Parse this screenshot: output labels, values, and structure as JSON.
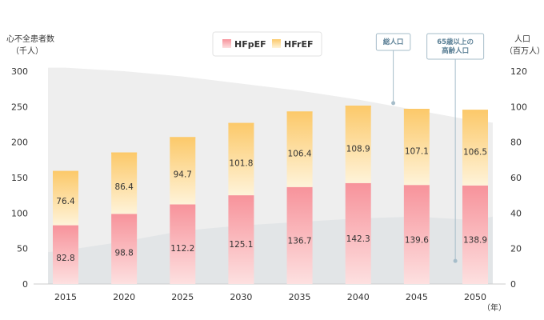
{
  "chart_data": {
    "type": "bar",
    "stacked": true,
    "categories": [
      "2015",
      "2020",
      "2025",
      "2030",
      "2035",
      "2040",
      "2045",
      "2050"
    ],
    "series": [
      {
        "name": "HFpEF",
        "values": [
          82.8,
          98.8,
          112.2,
          125.1,
          136.7,
          142.3,
          139.6,
          138.9
        ],
        "color_top": "#f7939b",
        "color_bottom": "#fde0e0"
      },
      {
        "name": "HFrEF",
        "values": [
          76.4,
          86.4,
          94.7,
          101.8,
          106.4,
          108.9,
          107.1,
          106.5
        ],
        "color_top": "#fcc96a",
        "color_bottom": "#fef3d9"
      }
    ],
    "y_left": {
      "label_line1": "心不全患者数",
      "label_line2": "（千人）",
      "ticks": [
        0,
        50,
        100,
        150,
        200,
        250,
        300
      ],
      "range": [
        0,
        300
      ]
    },
    "y_right": {
      "label_line1": "人口",
      "label_line2": "（百万人）",
      "ticks": [
        0,
        20,
        40,
        60,
        80,
        100,
        120
      ],
      "range": [
        0,
        120
      ]
    },
    "x_unit": "（年）",
    "background_areas": [
      {
        "name": "総人口",
        "color": "#eeeeee",
        "x": [
          2013.5,
          2015,
          2020,
          2025,
          2030,
          2035,
          2040,
          2045,
          2050,
          2051.5
        ],
        "y": [
          122,
          122,
          120,
          117,
          113,
          109,
          104,
          98,
          92,
          91
        ]
      },
      {
        "name": "65歳以上の高齢人口",
        "color": "#e2e5e7",
        "x": [
          2013.5,
          2015,
          2020,
          2025,
          2030,
          2035,
          2040,
          2045,
          2050,
          2051.5
        ],
        "y": [
          18,
          19,
          24,
          30,
          33,
          35,
          37,
          38,
          36,
          38
        ]
      }
    ],
    "callouts": [
      {
        "text_lines": [
          "総人口"
        ],
        "year": 2043,
        "value": 102
      },
      {
        "text_lines": [
          "65歳以上の",
          "高齢人口"
        ],
        "year": 2048.3,
        "value": 13
      }
    ],
    "grid": false
  }
}
